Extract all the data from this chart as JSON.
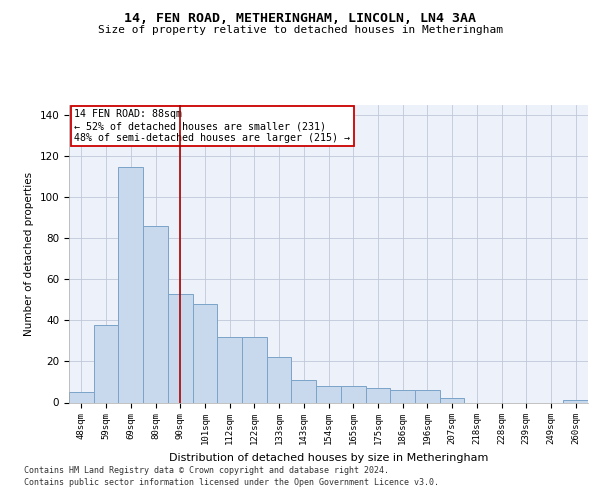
{
  "title": "14, FEN ROAD, METHERINGHAM, LINCOLN, LN4 3AA",
  "subtitle": "Size of property relative to detached houses in Metheringham",
  "xlabel": "Distribution of detached houses by size in Metheringham",
  "ylabel": "Number of detached properties",
  "categories": [
    "48sqm",
    "59sqm",
    "69sqm",
    "80sqm",
    "90sqm",
    "101sqm",
    "112sqm",
    "122sqm",
    "133sqm",
    "143sqm",
    "154sqm",
    "165sqm",
    "175sqm",
    "186sqm",
    "196sqm",
    "207sqm",
    "218sqm",
    "228sqm",
    "239sqm",
    "249sqm",
    "260sqm"
  ],
  "values": [
    5,
    38,
    115,
    86,
    53,
    48,
    32,
    32,
    22,
    11,
    8,
    8,
    7,
    6,
    6,
    2,
    0,
    0,
    0,
    0,
    1
  ],
  "bar_color": "#c9d9ed",
  "bar_edge_color": "#7ba3c8",
  "vline_x": 4,
  "vline_color": "#aa0000",
  "annotation_text": "14 FEN ROAD: 88sqm\n← 52% of detached houses are smaller (231)\n48% of semi-detached houses are larger (215) →",
  "annotation_box_color": "#ffffff",
  "annotation_box_edge": "#cc0000",
  "ylim": [
    0,
    145
  ],
  "yticks": [
    0,
    20,
    40,
    60,
    80,
    100,
    120,
    140
  ],
  "footer1": "Contains HM Land Registry data © Crown copyright and database right 2024.",
  "footer2": "Contains public sector information licensed under the Open Government Licence v3.0.",
  "bg_color": "#edf1f9",
  "fig_bg_color": "#ffffff"
}
